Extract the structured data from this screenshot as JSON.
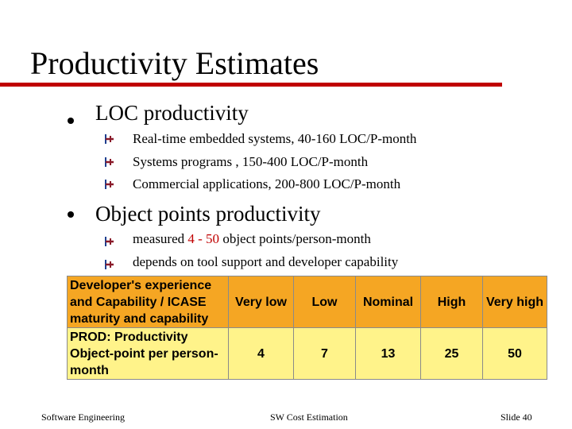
{
  "slide": {
    "title": "Productivity Estimates",
    "accent_color": "#c00000",
    "bullets": [
      {
        "text": "LOC productivity",
        "icon": "bullet-dot-icon",
        "sub": [
          {
            "text": "Real-time embedded systems, 40-160 LOC/P-month",
            "icon": "pushpin-icon"
          },
          {
            "text": "Systems programs , 150-400 LOC/P-month",
            "icon": "pushpin-icon"
          },
          {
            "text": "Commercial applications, 200-800 LOC/P-month",
            "icon": "pushpin-icon"
          }
        ]
      },
      {
        "text": "Object points productivity",
        "icon": "bullet-dot-icon",
        "sub": [
          {
            "before": "measured ",
            "highlight": "4 - 50",
            "after": " object points/person-month",
            "icon": "pushpin-icon"
          },
          {
            "text": "depends on tool support and developer capability",
            "icon": "pushpin-icon"
          }
        ]
      }
    ]
  },
  "table": {
    "header_color": "#f5a623",
    "row_color": "#fff38a",
    "header_label": "Developer's experience and Capability / ICASE maturity and capability",
    "header_values": [
      "Very low",
      "Low",
      "Nominal",
      "High",
      "Very high"
    ],
    "row_label": "PROD: Productivity Object-point per person-month",
    "row_values": [
      "4",
      "7",
      "13",
      "25",
      "50"
    ]
  },
  "footer": {
    "left": "Software Engineering",
    "center": "SW Cost Estimation",
    "right": "Slide 40"
  }
}
